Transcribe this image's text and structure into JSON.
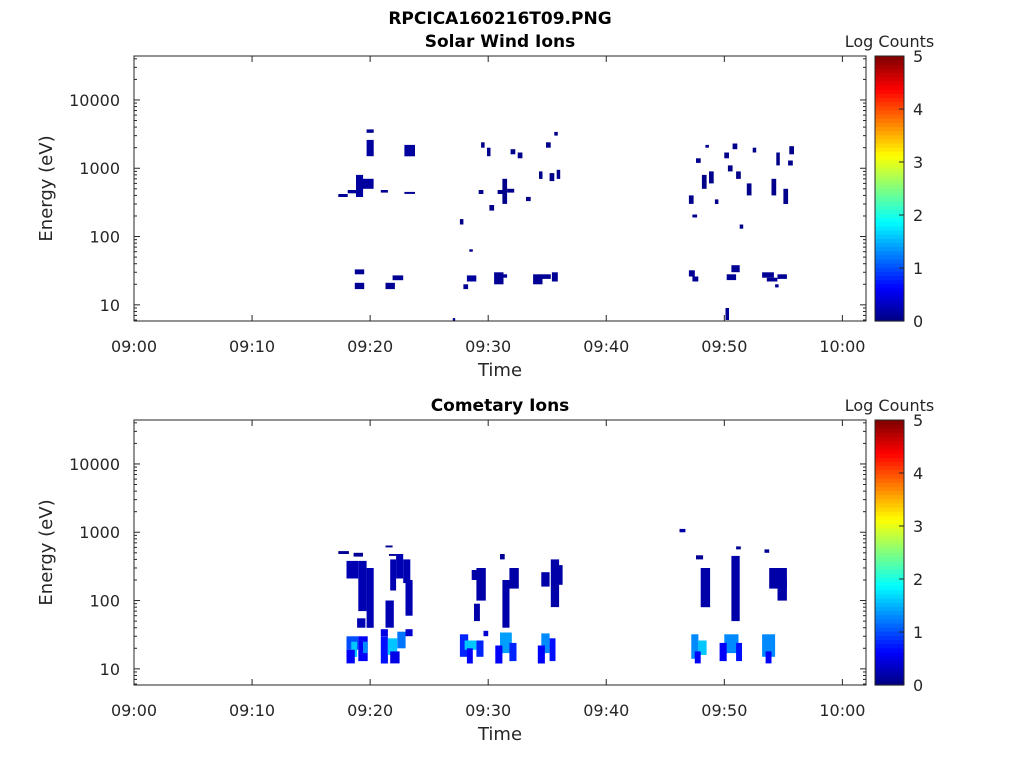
{
  "figure": {
    "title": "RPCICA160216T09.PNG"
  },
  "chart_data": [
    {
      "type": "heatmap",
      "title": "Solar Wind Ions",
      "xlabel": "Time",
      "ylabel": "Energy (eV)",
      "x_ticks": [
        "09:00",
        "09:10",
        "09:20",
        "09:30",
        "09:40",
        "09:50",
        "10:00"
      ],
      "xlim_minutes": [
        0,
        62
      ],
      "y_ticks": [
        "10",
        "100",
        "1000",
        "10000"
      ],
      "y_tick_values": [
        10,
        100,
        1000,
        10000
      ],
      "ylim": [
        5.8,
        44000
      ],
      "y_scale": "log",
      "colorbar": {
        "label": "Log Counts",
        "ticks": [
          "0",
          "1",
          "2",
          "3",
          "4",
          "5"
        ],
        "range": [
          0,
          5
        ]
      },
      "cells": [
        [
          17.3,
          18.1,
          380,
          420,
          0.1
        ],
        [
          18.1,
          18.8,
          430,
          480,
          0.1
        ],
        [
          18.8,
          19.4,
          380,
          800,
          0.15
        ],
        [
          19.4,
          20.3,
          500,
          700,
          0.15
        ],
        [
          19.7,
          20.3,
          1500,
          2600,
          0.15
        ],
        [
          19.7,
          20.3,
          3300,
          3700,
          0.1
        ],
        [
          20.9,
          21.5,
          440,
          480,
          0.1
        ],
        [
          22.9,
          23.8,
          1500,
          2200,
          0.15
        ],
        [
          22.9,
          23.8,
          420,
          450,
          0.1
        ],
        [
          18.7,
          19.5,
          28,
          33,
          0.1
        ],
        [
          18.7,
          19.5,
          17,
          21,
          0.1
        ],
        [
          21.3,
          22.1,
          17,
          21,
          0.1
        ],
        [
          21.9,
          22.8,
          23,
          27,
          0.1
        ],
        [
          27.6,
          27.9,
          150,
          180,
          0.05
        ],
        [
          28.4,
          28.7,
          60,
          65,
          0.05
        ],
        [
          27.9,
          28.3,
          17,
          20,
          0.1
        ],
        [
          28.2,
          29.0,
          22,
          27,
          0.15
        ],
        [
          29.2,
          29.6,
          420,
          480,
          0.05
        ],
        [
          29.4,
          29.7,
          2000,
          2400,
          0.05
        ],
        [
          29.9,
          30.2,
          1500,
          2000,
          0.05
        ],
        [
          30.1,
          30.5,
          240,
          290,
          0.05
        ],
        [
          30.8,
          31.3,
          420,
          480,
          0.05
        ],
        [
          31.2,
          31.6,
          300,
          700,
          0.05
        ],
        [
          31.6,
          32.2,
          440,
          500,
          0.05
        ],
        [
          31.9,
          32.3,
          1600,
          1900,
          0.05
        ],
        [
          32.5,
          32.9,
          1400,
          1700,
          0.05
        ],
        [
          33.2,
          33.6,
          330,
          380,
          0.05
        ],
        [
          34.3,
          34.6,
          700,
          900,
          0.05
        ],
        [
          34.9,
          35.3,
          2000,
          2400,
          0.05
        ],
        [
          35.2,
          35.6,
          650,
          850,
          0.05
        ],
        [
          35.6,
          35.9,
          3000,
          3400,
          0.05
        ],
        [
          35.8,
          36.1,
          700,
          950,
          0.05
        ],
        [
          30.5,
          31.3,
          20,
          30,
          0.1
        ],
        [
          31.0,
          31.6,
          25,
          28,
          0.1
        ],
        [
          33.8,
          34.6,
          20,
          28,
          0.1
        ],
        [
          34.6,
          35.3,
          24,
          28,
          0.1
        ],
        [
          35.4,
          35.9,
          22,
          30,
          0.1
        ],
        [
          47.0,
          47.4,
          300,
          400,
          0.05
        ],
        [
          47.3,
          47.7,
          190,
          210,
          0.05
        ],
        [
          47.6,
          48.0,
          1200,
          1400,
          0.05
        ],
        [
          48.1,
          48.5,
          500,
          800,
          0.05
        ],
        [
          48.4,
          48.7,
          2000,
          2200,
          0.05
        ],
        [
          48.7,
          49.1,
          600,
          900,
          0.05
        ],
        [
          49.2,
          49.5,
          300,
          350,
          0.05
        ],
        [
          50.0,
          50.4,
          1400,
          1700,
          0.05
        ],
        [
          50.3,
          50.7,
          900,
          1100,
          0.05
        ],
        [
          50.7,
          51.1,
          1900,
          2300,
          0.05
        ],
        [
          51.0,
          51.4,
          700,
          900,
          0.05
        ],
        [
          51.3,
          51.6,
          130,
          150,
          0.05
        ],
        [
          51.9,
          52.3,
          400,
          600,
          0.05
        ],
        [
          52.4,
          52.7,
          1700,
          2000,
          0.05
        ],
        [
          54.0,
          54.4,
          400,
          700,
          0.05
        ],
        [
          54.4,
          54.7,
          1100,
          1700,
          0.05
        ],
        [
          55.0,
          55.4,
          300,
          500,
          0.05
        ],
        [
          55.4,
          55.8,
          1100,
          1300,
          0.05
        ],
        [
          55.5,
          55.9,
          1600,
          2100,
          0.05
        ],
        [
          47.0,
          47.5,
          26,
          32,
          0.1
        ],
        [
          47.3,
          47.8,
          22,
          26,
          0.1
        ],
        [
          50.6,
          51.3,
          30,
          38,
          0.1
        ],
        [
          50.2,
          51.0,
          23,
          28,
          0.1
        ],
        [
          50.1,
          50.4,
          6,
          9,
          0.1
        ],
        [
          53.2,
          54.2,
          25,
          30,
          0.1
        ],
        [
          53.6,
          54.5,
          22,
          25,
          0.1
        ],
        [
          54.5,
          55.3,
          24,
          28,
          0.1
        ],
        [
          54.3,
          54.6,
          18,
          20,
          0.1
        ],
        [
          27.0,
          27.2,
          5.9,
          6.4,
          0.1
        ]
      ]
    },
    {
      "type": "heatmap",
      "title": "Cometary Ions",
      "xlabel": "Time",
      "ylabel": "Energy (eV)",
      "x_ticks": [
        "09:00",
        "09:10",
        "09:20",
        "09:30",
        "09:40",
        "09:50",
        "10:00"
      ],
      "xlim_minutes": [
        0,
        62
      ],
      "y_ticks": [
        "10",
        "100",
        "1000",
        "10000"
      ],
      "y_tick_values": [
        10,
        100,
        1000,
        10000
      ],
      "ylim": [
        5.8,
        44000
      ],
      "y_scale": "log",
      "colorbar": {
        "label": "Log Counts",
        "ticks": [
          "0",
          "1",
          "2",
          "3",
          "4",
          "5"
        ],
        "range": [
          0,
          5
        ]
      },
      "cells": [
        [
          17.3,
          18.2,
          480,
          530,
          0.1
        ],
        [
          18.6,
          19.4,
          440,
          500,
          0.1
        ],
        [
          18.0,
          19.0,
          210,
          380,
          0.25
        ],
        [
          19.0,
          19.7,
          70,
          380,
          0.25
        ],
        [
          19.7,
          20.3,
          40,
          300,
          0.25
        ],
        [
          18.9,
          19.6,
          40,
          55,
          0.25
        ],
        [
          18.0,
          19.0,
          19,
          30,
          1.0
        ],
        [
          18.4,
          18.9,
          15,
          25,
          1.6
        ],
        [
          18.0,
          18.7,
          12,
          19,
          0.6
        ],
        [
          19.0,
          19.8,
          13,
          30,
          0.6
        ],
        [
          19.4,
          19.8,
          17,
          25,
          1.3
        ],
        [
          21.3,
          21.9,
          600,
          640,
          0.1
        ],
        [
          21.6,
          22.2,
          450,
          480,
          0.1
        ],
        [
          21.7,
          22.2,
          140,
          400,
          0.25
        ],
        [
          22.2,
          22.8,
          210,
          480,
          0.25
        ],
        [
          22.8,
          23.4,
          180,
          400,
          0.25
        ],
        [
          23.0,
          23.6,
          60,
          200,
          0.25
        ],
        [
          21.3,
          22.0,
          40,
          100,
          0.25
        ],
        [
          20.9,
          21.5,
          30,
          38,
          0.5
        ],
        [
          20.9,
          21.5,
          12,
          30,
          0.7
        ],
        [
          21.5,
          22.3,
          16,
          28,
          1.6
        ],
        [
          22.3,
          23.0,
          20,
          35,
          1.2
        ],
        [
          21.7,
          22.5,
          12,
          18,
          0.5
        ],
        [
          23.0,
          23.6,
          30,
          38,
          0.4
        ],
        [
          27.6,
          28.3,
          15,
          32,
          0.8
        ],
        [
          28.0,
          29.0,
          19,
          26,
          1.6
        ],
        [
          28.2,
          28.7,
          12,
          20,
          0.6
        ],
        [
          29.0,
          29.6,
          15,
          26,
          0.8
        ],
        [
          29.6,
          30.0,
          30,
          36,
          0.4
        ],
        [
          28.6,
          29.2,
          200,
          280,
          0.2
        ],
        [
          29.0,
          29.8,
          100,
          300,
          0.2
        ],
        [
          28.8,
          29.3,
          50,
          90,
          0.2
        ],
        [
          31.0,
          32.0,
          17,
          34,
          1.4
        ],
        [
          30.6,
          31.2,
          12,
          22,
          0.6
        ],
        [
          31.8,
          32.4,
          13,
          24,
          0.8
        ],
        [
          31.2,
          31.8,
          40,
          200,
          0.2
        ],
        [
          31.8,
          32.6,
          150,
          300,
          0.2
        ],
        [
          31.0,
          31.4,
          400,
          480,
          0.1
        ],
        [
          34.5,
          35.2,
          17,
          33,
          1.3
        ],
        [
          34.2,
          34.8,
          12,
          22,
          0.6
        ],
        [
          35.2,
          35.7,
          13,
          28,
          0.7
        ],
        [
          34.5,
          35.2,
          160,
          260,
          0.2
        ],
        [
          35.3,
          36.0,
          80,
          400,
          0.2
        ],
        [
          35.8,
          36.3,
          170,
          330,
          0.2
        ],
        [
          46.2,
          46.7,
          1000,
          1120,
          0.2
        ],
        [
          47.2,
          47.8,
          14,
          32,
          1.3
        ],
        [
          47.8,
          48.5,
          16,
          26,
          1.6
        ],
        [
          47.5,
          48.0,
          12,
          18,
          0.6
        ],
        [
          48.0,
          48.8,
          80,
          300,
          0.2
        ],
        [
          47.6,
          48.2,
          400,
          460,
          0.1
        ],
        [
          50.0,
          51.2,
          17,
          32,
          1.3
        ],
        [
          49.6,
          50.2,
          13,
          24,
          0.6
        ],
        [
          51.0,
          51.5,
          13,
          24,
          0.7
        ],
        [
          50.6,
          51.3,
          50,
          450,
          0.2
        ],
        [
          51.0,
          51.4,
          560,
          620,
          0.1
        ],
        [
          53.2,
          54.3,
          15,
          32,
          1.3
        ],
        [
          53.5,
          54.0,
          12,
          18,
          0.6
        ],
        [
          53.8,
          55.3,
          150,
          300,
          0.2
        ],
        [
          54.5,
          55.3,
          100,
          200,
          0.2
        ],
        [
          53.4,
          53.8,
          500,
          560,
          0.1
        ]
      ]
    }
  ]
}
